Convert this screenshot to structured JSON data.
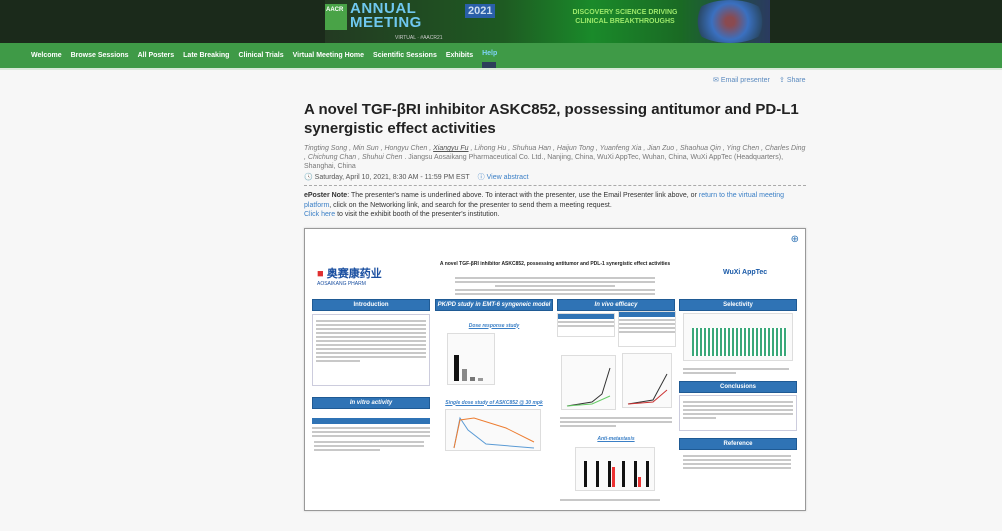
{
  "banner": {
    "org": "AACR",
    "event_line1": "ANNUAL",
    "event_line2": "MEETING",
    "year": "2021",
    "subtitle": "VIRTUAL · #AACR21",
    "tagline": "DISCOVERY SCIENCE DRIVING CLINICAL BREAKTHROUGHS"
  },
  "nav": {
    "items": [
      "Welcome",
      "Browse Sessions",
      "All Posters",
      "Late Breaking",
      "Clinical Trials",
      "Virtual Meeting Home",
      "Scientific Sessions",
      "Exhibits"
    ],
    "help": "Help"
  },
  "tools": {
    "email": "Email presenter",
    "share": "Share"
  },
  "poster_page": {
    "title": "A novel TGF-βRI inhibitor ASKC852, possessing antitumor and PD-L1 synergistic effect activities",
    "authors_before": "Tingting Song , Min Sun , Hongyu Chen , ",
    "presenter": "Xiangyu Fu",
    "authors_after": " , Lihong Hu , Shuhua Han , Haijun Tong , Yuanfeng Xia , Jian Zuo , Shaohua Qin , Ying Chen , Charles Ding , Chichung Chan , Shuhui Chen",
    "affiliations": " . Jiangsu Aosaikang Pharmaceutical Co. Ltd., Nanjing, China, WuXi AppTec, Wuhan, China, WuXi AppTec (Headquarters), Shanghai, China",
    "datetime": "Saturday, April 10, 2021, 8:30 AM - 11:59 PM EST",
    "view_abstract": "View abstract",
    "note_label": "ePoster Note",
    "note_1": ": The presenter's name is underlined above. To interact with the presenter, use the Email Presenter link above, or ",
    "note_link": "return to the virtual meeting platform",
    "note_2": ", click on the Networking link, and search for the presenter to send them a meeting request.",
    "click_here": "Click here",
    "note_3": " to visit the exhibit booth of the presenter's institution."
  },
  "poster": {
    "title": "A novel TGF-βRI inhibitor ASKC852, possessing antitumor and PDL-1 synergistic effect activities",
    "logo_left_cn": "奥赛康药业",
    "logo_left_en": "AOSAIKANG PHARM",
    "logo_right": "WuXi AppTec",
    "sections": {
      "introduction": "Introduction",
      "in_vitro": "In vitro activity",
      "pkpd": "PK/PD study in EMT-6 syngeneic model",
      "dose_response": "Dose response study",
      "single_dose": "Single dose study of ASKC852 @ 30 mpk",
      "in_vivo": "In vivo efficacy",
      "anti_metastasis": "Anti-metastasis",
      "selectivity": "Selectivity",
      "conclusions": "Conclusions",
      "reference": "Reference"
    }
  },
  "colors": {
    "nav_green": "#3f9a47",
    "poster_blue": "#2f73b5",
    "link": "#3a7fc6"
  }
}
